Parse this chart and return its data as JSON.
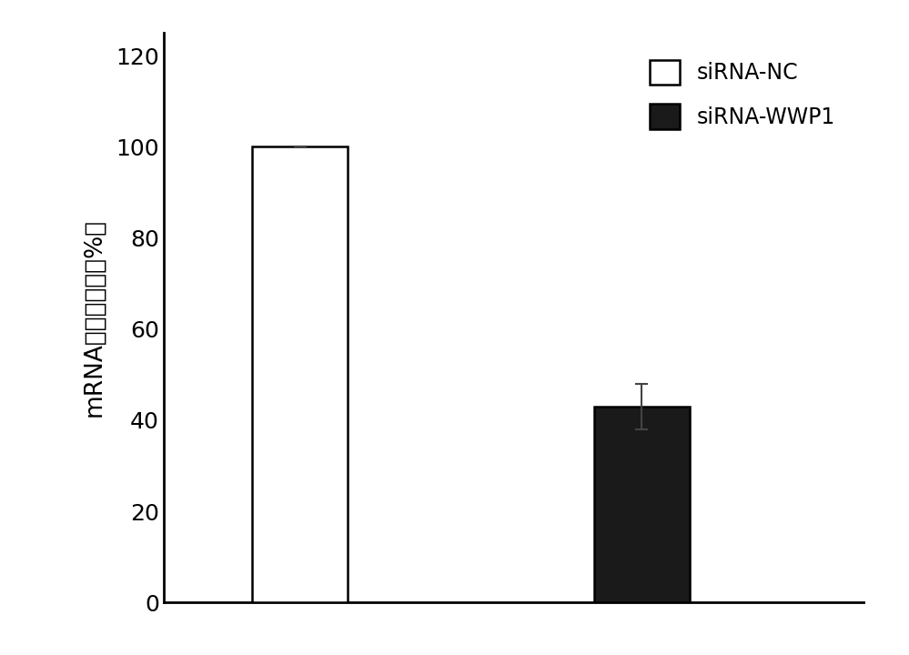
{
  "categories": [
    "siRNA-NC",
    "siRNA-WWP1"
  ],
  "values": [
    100,
    43
  ],
  "errors": [
    0,
    5
  ],
  "bar_colors": [
    "#ffffff",
    "#1a1a1a"
  ],
  "bar_edge_colors": [
    "#000000",
    "#000000"
  ],
  "bar_edge_width": 1.8,
  "bar_width": 0.28,
  "bar_positions": [
    1,
    2
  ],
  "ylabel": "mRNA相对表达量（%）",
  "ylim": [
    0,
    125
  ],
  "yticks": [
    0,
    20,
    40,
    60,
    80,
    100,
    120
  ],
  "background_color": "#ffffff",
  "legend_labels": [
    "siRNA-NC",
    "siRNA-WWP1"
  ],
  "legend_colors": [
    "#ffffff",
    "#1a1a1a"
  ],
  "legend_edge_colors": [
    "#000000",
    "#000000"
  ],
  "ylabel_fontsize": 19,
  "tick_fontsize": 18,
  "legend_fontsize": 17,
  "error_cap_size": 5,
  "error_line_width": 1.5,
  "error_color": "#444444"
}
